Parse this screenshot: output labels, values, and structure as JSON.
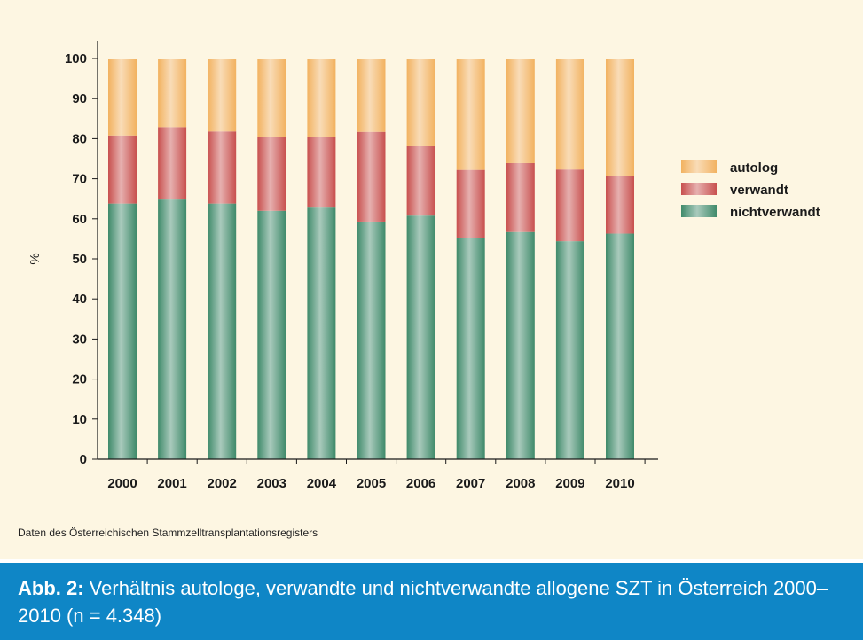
{
  "chart_data": {
    "type": "bar",
    "stacked": true,
    "categories": [
      "2000",
      "2001",
      "2002",
      "2003",
      "2004",
      "2005",
      "2006",
      "2007",
      "2008",
      "2009",
      "2010"
    ],
    "series": [
      {
        "name": "nichtverwandt",
        "color": "#3f8a6a",
        "values": [
          63.8,
          64.8,
          63.8,
          62.0,
          62.8,
          59.3,
          60.8,
          55.2,
          56.7,
          54.4,
          56.3
        ]
      },
      {
        "name": "verwandt",
        "color": "#c8504e",
        "values": [
          17.0,
          18.1,
          18.0,
          18.5,
          17.6,
          22.4,
          17.3,
          17.0,
          17.2,
          17.9,
          14.3
        ]
      },
      {
        "name": "autolog",
        "color": "#f2b260",
        "values": [
          19.2,
          17.1,
          18.2,
          19.5,
          19.6,
          18.3,
          21.9,
          27.8,
          26.1,
          27.7,
          29.4
        ]
      }
    ],
    "ylabel": "%",
    "ylim": [
      0,
      100
    ],
    "yticks": [
      0,
      10,
      20,
      30,
      40,
      50,
      60,
      70,
      80,
      90,
      100
    ],
    "grid": false,
    "legend_position": "right",
    "legend_order": [
      "autolog",
      "verwandt",
      "nichtverwandt"
    ]
  },
  "source_note": "Daten des Österreichischen Stammzelltransplantationsregisters",
  "caption": {
    "label": "Abb. 2:",
    "text": " Verhältnis autologe, verwandte und nichtverwandte allogene SZT in Österreich 2000–2010 (n = 4.348)"
  }
}
